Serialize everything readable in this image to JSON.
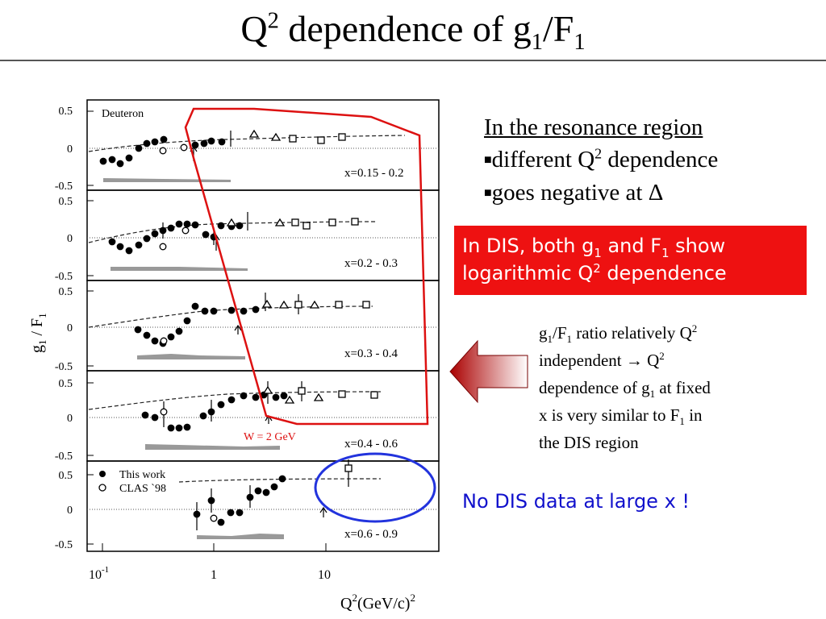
{
  "slide": {
    "title": {
      "main": "Q",
      "sup": "2",
      "mid": " dependence of g",
      "sub": "1",
      "tail": "/F",
      "sub2": "1"
    },
    "resonance": {
      "heading": "In the resonance region",
      "bullet1": {
        "text": "different Q",
        "sup": "2",
        "tail": " dependence"
      },
      "bullet2": {
        "text": "goes negative at Δ"
      },
      "bullet_marker": "■"
    },
    "dis_box": {
      "line1a": "In DIS, both g",
      "line1sub": "1",
      "line1b": " and F",
      "line1sub2": "1",
      "line1c": " show",
      "line2a": "logarithmic Q",
      "line2sup": "2",
      "line2b": " dependence",
      "color": "#ee1111"
    },
    "ratio_note": {
      "s1": "g",
      "s1sub": "1",
      "s2": "/F",
      "s2sub": "1",
      "s3": " ratio relatively Q",
      "s3sup": "2",
      "s4": "independent → Q",
      "s4sup": "2",
      "s5": "dependence of g",
      "s5sub": "1",
      "s6": " at fixed",
      "s7": "x is very similar to F",
      "s7sub": "1",
      "s8": " in",
      "s9": "the DIS region"
    },
    "no_dis": {
      "text": "No DIS data at large x !",
      "color": "#1111cc"
    }
  },
  "figure": {
    "y_axis_label": {
      "a": "g",
      "sub": "1",
      "b": " / F",
      "sub2": "1"
    },
    "x_axis_label": {
      "a": "Q",
      "sup": "2",
      "b": "(GeV/c)",
      "sup2": "2"
    },
    "x_ticks": {
      "t1": "10",
      "t1sup": "-1",
      "t2": "1",
      "t3": "10"
    },
    "y_ticks": [
      "0.5",
      "0",
      "-0.5"
    ],
    "panel_labels": [
      "Deuteron",
      "x=0.15 - 0.2",
      "x=0.2 - 0.3",
      "x=0.3 - 0.4",
      "x=0.4 - 0.6",
      "x=0.6 - 0.9"
    ],
    "w_label": "W = 2 GeV",
    "legend": {
      "this_work": "This work",
      "clas": "CLAS `98"
    },
    "colors": {
      "highlight": "#dd1111",
      "circle": "#2233dd",
      "band": "#999999"
    }
  }
}
